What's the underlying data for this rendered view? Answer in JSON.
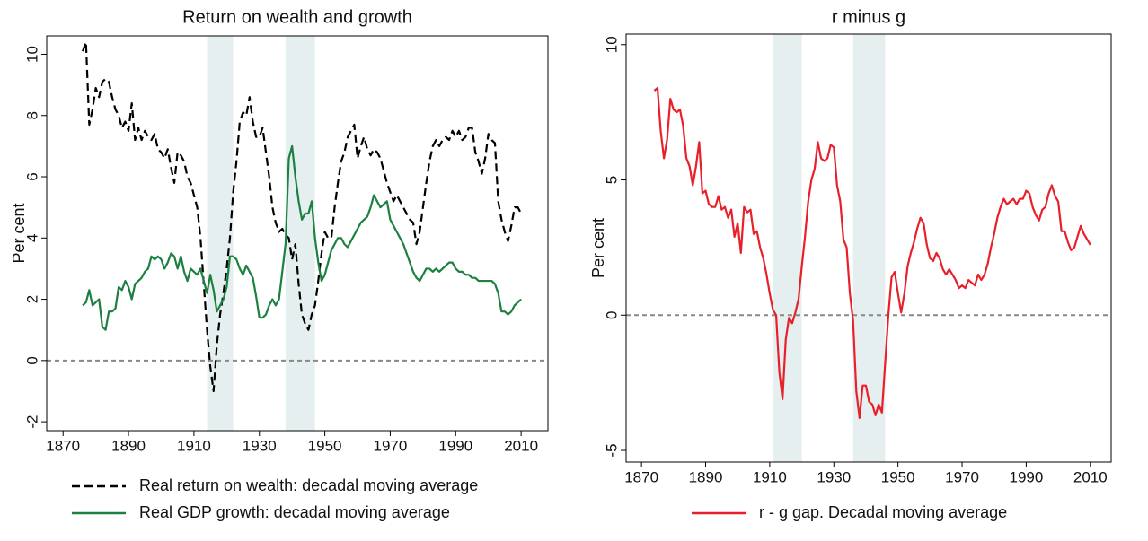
{
  "chart_data": [
    {
      "type": "line",
      "title": "Return on wealth and growth",
      "ylabel": "Per cent",
      "x": [
        1876,
        1877,
        1878,
        1879,
        1880,
        1881,
        1882,
        1883,
        1884,
        1885,
        1886,
        1887,
        1888,
        1889,
        1890,
        1891,
        1892,
        1893,
        1894,
        1895,
        1896,
        1897,
        1898,
        1899,
        1900,
        1901,
        1902,
        1903,
        1904,
        1905,
        1906,
        1907,
        1908,
        1909,
        1910,
        1911,
        1912,
        1913,
        1914,
        1915,
        1916,
        1917,
        1918,
        1919,
        1920,
        1921,
        1922,
        1923,
        1924,
        1925,
        1926,
        1927,
        1928,
        1929,
        1930,
        1931,
        1932,
        1933,
        1934,
        1935,
        1936,
        1937,
        1938,
        1939,
        1940,
        1941,
        1942,
        1943,
        1944,
        1945,
        1946,
        1947,
        1948,
        1949,
        1950,
        1951,
        1952,
        1953,
        1954,
        1955,
        1956,
        1957,
        1958,
        1959,
        1960,
        1961,
        1962,
        1963,
        1964,
        1965,
        1966,
        1967,
        1968,
        1969,
        1970,
        1971,
        1972,
        1973,
        1974,
        1975,
        1976,
        1977,
        1978,
        1979,
        1980,
        1981,
        1982,
        1983,
        1984,
        1985,
        1986,
        1987,
        1988,
        1989,
        1990,
        1991,
        1992,
        1993,
        1994,
        1995,
        1996,
        1997,
        1998,
        1999,
        2000,
        2001,
        2002,
        2003,
        2004,
        2005,
        2006,
        2007,
        2008,
        2009,
        2010
      ],
      "series": [
        {
          "name": "Real return on wealth: decadal moving average",
          "color": "#000000",
          "dash": "dashed",
          "values": [
            10.1,
            10.4,
            7.7,
            8.2,
            8.9,
            8.6,
            9.1,
            9.2,
            9.1,
            8.6,
            8.2,
            8.0,
            7.6,
            7.8,
            7.5,
            8.4,
            7.2,
            7.6,
            7.2,
            7.5,
            7.3,
            7.2,
            7.4,
            6.9,
            6.8,
            6.6,
            6.9,
            6.3,
            5.8,
            6.8,
            6.7,
            6.5,
            6.0,
            5.8,
            5.4,
            5.0,
            4.0,
            2.5,
            1.0,
            -0.2,
            -1.0,
            0.5,
            1.5,
            2.2,
            3.0,
            4.0,
            5.5,
            6.5,
            7.8,
            8.1,
            8.0,
            8.6,
            7.8,
            7.3,
            7.3,
            7.6,
            6.8,
            6.0,
            5.0,
            4.5,
            4.2,
            4.3,
            4.1,
            4.0,
            3.3,
            3.8,
            2.5,
            1.5,
            1.2,
            1.0,
            1.5,
            1.8,
            2.6,
            3.5,
            4.2,
            4.0,
            4.0,
            5.0,
            5.8,
            6.5,
            6.8,
            7.3,
            7.5,
            7.7,
            6.6,
            7.0,
            7.3,
            6.9,
            6.7,
            6.9,
            6.8,
            6.6,
            6.2,
            5.8,
            5.5,
            5.2,
            5.4,
            5.2,
            5.0,
            4.8,
            4.6,
            4.5,
            3.8,
            4.2,
            5.0,
            5.8,
            6.5,
            7.0,
            7.2,
            7.0,
            7.2,
            7.3,
            7.2,
            7.5,
            7.3,
            7.5,
            7.2,
            7.3,
            7.6,
            7.6,
            6.8,
            6.5,
            6.1,
            6.6,
            7.4,
            7.2,
            7.1,
            5.2,
            4.6,
            4.2,
            3.9,
            4.4,
            5.0,
            5.0,
            4.8
          ]
        },
        {
          "name": "Real GDP growth: decadal moving average",
          "color": "#1b8040",
          "dash": "solid",
          "values": [
            1.8,
            1.9,
            2.3,
            1.8,
            1.9,
            2.0,
            1.1,
            1.0,
            1.6,
            1.6,
            1.7,
            2.4,
            2.3,
            2.6,
            2.4,
            2.0,
            2.5,
            2.6,
            2.7,
            2.9,
            3.0,
            3.4,
            3.3,
            3.4,
            3.3,
            3.0,
            3.2,
            3.5,
            3.4,
            3.0,
            3.4,
            2.9,
            2.6,
            3.0,
            2.9,
            2.8,
            3.0,
            2.6,
            2.2,
            2.8,
            2.3,
            1.6,
            1.8,
            2.0,
            2.4,
            3.4,
            3.4,
            3.3,
            3.0,
            2.8,
            3.1,
            2.9,
            2.7,
            2.1,
            1.4,
            1.4,
            1.5,
            1.8,
            2.0,
            1.8,
            2.0,
            2.9,
            3.8,
            6.6,
            7.0,
            6.0,
            5.2,
            4.6,
            4.8,
            4.8,
            5.2,
            4.0,
            3.2,
            2.6,
            2.8,
            3.2,
            3.6,
            3.8,
            4.0,
            4.0,
            3.8,
            3.7,
            3.9,
            4.1,
            4.3,
            4.5,
            4.6,
            4.7,
            5.0,
            5.4,
            5.2,
            5.0,
            5.1,
            5.2,
            4.6,
            4.4,
            4.2,
            4.0,
            3.8,
            3.5,
            3.2,
            2.9,
            2.7,
            2.6,
            2.8,
            3.0,
            3.0,
            2.9,
            3.0,
            2.9,
            3.0,
            3.1,
            3.2,
            3.2,
            3.0,
            2.9,
            2.9,
            2.8,
            2.8,
            2.7,
            2.7,
            2.6,
            2.6,
            2.6,
            2.6,
            2.6,
            2.5,
            2.2,
            1.6,
            1.6,
            1.5,
            1.6,
            1.8,
            1.9,
            2.0
          ]
        }
      ],
      "xlim": [
        1865,
        2018.2
      ],
      "xticks": [
        1870,
        1890,
        1910,
        1930,
        1950,
        1970,
        1990,
        2010
      ],
      "ylim": [
        -2.29,
        10.6
      ],
      "yticks": [
        -2,
        0,
        2,
        4,
        6,
        8,
        10
      ],
      "shaded_periods": [
        [
          1914,
          1922
        ],
        [
          1938,
          1947
        ]
      ],
      "shade_color": "#e6eff0",
      "hline": 0,
      "legend": "bottom"
    },
    {
      "type": "line",
      "title": "r minus g",
      "ylabel": "Per cent",
      "x": [
        1874,
        1875,
        1876,
        1877,
        1878,
        1879,
        1880,
        1881,
        1882,
        1883,
        1884,
        1885,
        1886,
        1887,
        1888,
        1889,
        1890,
        1891,
        1892,
        1893,
        1894,
        1895,
        1896,
        1897,
        1898,
        1899,
        1900,
        1901,
        1902,
        1903,
        1904,
        1905,
        1906,
        1907,
        1908,
        1909,
        1910,
        1911,
        1912,
        1913,
        1914,
        1915,
        1916,
        1917,
        1918,
        1919,
        1920,
        1921,
        1922,
        1923,
        1924,
        1925,
        1926,
        1927,
        1928,
        1929,
        1930,
        1931,
        1932,
        1933,
        1934,
        1935,
        1936,
        1937,
        1938,
        1939,
        1940,
        1941,
        1942,
        1943,
        1944,
        1945,
        1946,
        1947,
        1948,
        1949,
        1950,
        1951,
        1952,
        1953,
        1954,
        1955,
        1956,
        1957,
        1958,
        1959,
        1960,
        1961,
        1962,
        1963,
        1964,
        1965,
        1966,
        1967,
        1968,
        1969,
        1970,
        1971,
        1972,
        1973,
        1974,
        1975,
        1976,
        1977,
        1978,
        1979,
        1980,
        1981,
        1982,
        1983,
        1984,
        1985,
        1986,
        1987,
        1988,
        1989,
        1990,
        1991,
        1992,
        1993,
        1994,
        1995,
        1996,
        1997,
        1998,
        1999,
        2000,
        2001,
        2002,
        2003,
        2004,
        2005,
        2006,
        2007,
        2008,
        2009,
        2010
      ],
      "series": [
        {
          "name": "r - g gap. Decadal moving average",
          "color": "#e8202a",
          "dash": "solid",
          "values": [
            8.3,
            8.4,
            6.8,
            5.8,
            6.5,
            8.0,
            7.6,
            7.5,
            7.6,
            7.0,
            5.8,
            5.5,
            4.8,
            5.5,
            6.4,
            4.5,
            4.6,
            4.1,
            4.0,
            4.0,
            4.4,
            3.9,
            4.0,
            3.6,
            3.9,
            2.9,
            3.4,
            2.3,
            4.0,
            3.8,
            3.9,
            3.0,
            3.1,
            2.5,
            2.1,
            1.5,
            0.8,
            0.2,
            0.0,
            -2.1,
            -3.1,
            -0.9,
            -0.1,
            -0.3,
            0.1,
            0.6,
            1.8,
            2.9,
            4.2,
            5.0,
            5.4,
            6.4,
            5.8,
            5.7,
            5.8,
            6.3,
            6.2,
            4.8,
            4.2,
            2.8,
            2.5,
            0.8,
            -0.2,
            -2.8,
            -3.8,
            -2.6,
            -2.6,
            -3.2,
            -3.3,
            -3.7,
            -3.3,
            -3.6,
            -1.8,
            0.0,
            1.4,
            1.6,
            0.8,
            0.1,
            0.8,
            1.8,
            2.3,
            2.7,
            3.2,
            3.6,
            3.4,
            2.6,
            2.1,
            2.0,
            2.3,
            2.1,
            1.7,
            1.5,
            1.7,
            1.5,
            1.3,
            1.0,
            1.1,
            1.0,
            1.3,
            1.2,
            1.1,
            1.5,
            1.3,
            1.5,
            1.9,
            2.5,
            3.0,
            3.6,
            4.0,
            4.3,
            4.1,
            4.2,
            4.3,
            4.1,
            4.3,
            4.3,
            4.6,
            4.5,
            4.0,
            3.7,
            3.5,
            3.9,
            4.0,
            4.5,
            4.8,
            4.4,
            4.2,
            3.1,
            3.1,
            2.7,
            2.4,
            2.5,
            2.9,
            3.3,
            3.0,
            2.8,
            2.6
          ]
        }
      ],
      "xlim": [
        1865.2,
        2016.5
      ],
      "xticks": [
        1870,
        1890,
        1910,
        1930,
        1950,
        1970,
        1990,
        2010
      ],
      "ylim": [
        -5.43,
        10.39
      ],
      "yticks": [
        -5,
        0,
        5,
        10
      ],
      "shaded_periods": [
        [
          1911,
          1920
        ],
        [
          1936,
          1946
        ]
      ],
      "shade_color": "#e6eff0",
      "hline": 0,
      "legend": "bottom"
    }
  ]
}
